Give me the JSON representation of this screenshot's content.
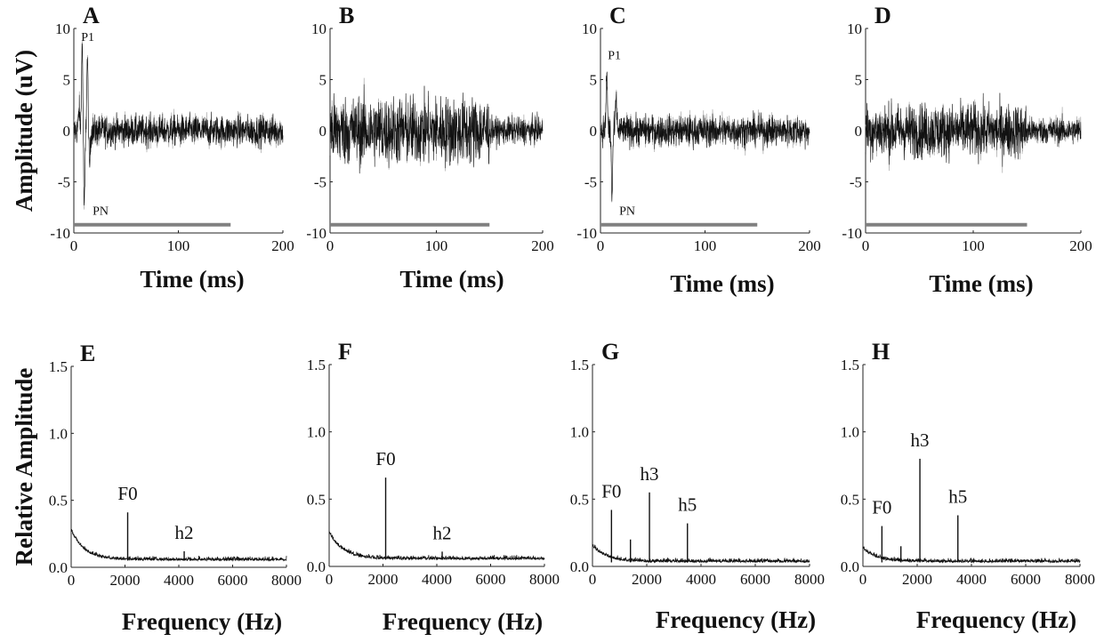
{
  "chart_data": [
    {
      "id": "A",
      "type": "line",
      "panel_label": "A",
      "xlabel": "Time (ms)",
      "ylabel": "Amplitude (uV)",
      "xlim": [
        0,
        200
      ],
      "ylim": [
        -10,
        10
      ],
      "xticks": [
        "0",
        "100",
        "200"
      ],
      "yticks": [
        "-10",
        "-5",
        "0",
        "5",
        "10"
      ],
      "stimulus_bar_ms": [
        0,
        150
      ],
      "annotations": [
        {
          "text": "P1",
          "x": 7,
          "y": 8.8
        },
        {
          "text": "PN",
          "x": 18,
          "y": -8.2
        }
      ],
      "waveform": {
        "onset_peaks": [
          [
            5,
            2
          ],
          [
            8,
            8.5
          ],
          [
            10,
            -7.5
          ],
          [
            13,
            7
          ],
          [
            15,
            -3.5
          ]
        ],
        "noise_amplitude": 1.4,
        "end_ms": 200
      }
    },
    {
      "id": "B",
      "type": "line",
      "panel_label": "B",
      "xlabel": "Time (ms)",
      "ylabel": "",
      "xlim": [
        0,
        200
      ],
      "ylim": [
        -10,
        10
      ],
      "xticks": [
        "0",
        "100",
        "200"
      ],
      "yticks": [
        "-10",
        "-5",
        "0",
        "5",
        "10"
      ],
      "stimulus_bar_ms": [
        0,
        150
      ],
      "annotations": [],
      "waveform": {
        "onset_peaks": [],
        "noise_amplitude": 3.2,
        "late_noise_amplitude": 1.2,
        "noise_change_ms": 150,
        "end_ms": 200
      }
    },
    {
      "id": "C",
      "type": "line",
      "panel_label": "C",
      "xlabel": "Time (ms)",
      "ylabel": "",
      "xlim": [
        0,
        200
      ],
      "ylim": [
        -10,
        10
      ],
      "xticks": [
        "0",
        "100",
        "200"
      ],
      "yticks": [
        "-10",
        "-5",
        "0",
        "5",
        "10"
      ],
      "stimulus_bar_ms": [
        0,
        150
      ],
      "annotations": [
        {
          "text": "P1",
          "x": 7,
          "y": 7
        },
        {
          "text": "PN",
          "x": 18,
          "y": -8.2
        }
      ],
      "waveform": {
        "onset_peaks": [
          [
            6,
            5.5
          ],
          [
            11,
            -6.5
          ],
          [
            15,
            3
          ]
        ],
        "noise_amplitude": 1.4,
        "end_ms": 200
      }
    },
    {
      "id": "D",
      "type": "line",
      "panel_label": "D",
      "xlabel": "Time (ms)",
      "ylabel": "",
      "xlim": [
        0,
        200
      ],
      "ylim": [
        -10,
        10
      ],
      "xticks": [
        "0",
        "100",
        "200"
      ],
      "yticks": [
        "-10",
        "-5",
        "0",
        "5",
        "10"
      ],
      "stimulus_bar_ms": [
        0,
        150
      ],
      "annotations": [],
      "waveform": {
        "onset_peaks": [],
        "noise_amplitude": 2.5,
        "late_noise_amplitude": 1.2,
        "noise_change_ms": 150,
        "end_ms": 200
      }
    },
    {
      "id": "E",
      "type": "line",
      "panel_label": "E",
      "xlabel": "Frequency (Hz)",
      "ylabel": "Relative Amplitude",
      "xlim": [
        0,
        8000
      ],
      "ylim": [
        0,
        1.5
      ],
      "xticks": [
        "0",
        "2000",
        "4000",
        "6000",
        "8000"
      ],
      "yticks": [
        "0.0",
        "0.5",
        "1.0",
        "1.5"
      ],
      "peaks": [
        {
          "label": "F0",
          "x": 2100,
          "y": 0.41
        },
        {
          "label": "h2",
          "x": 4200,
          "y": 0.12
        }
      ],
      "baseline": 0.05,
      "low_freq_max": 0.22
    },
    {
      "id": "F",
      "type": "line",
      "panel_label": "F",
      "xlabel": "Frequency (Hz)",
      "ylabel": "",
      "xlim": [
        0,
        8000
      ],
      "ylim": [
        0,
        1.5
      ],
      "xticks": [
        "0",
        "2000",
        "4000",
        "6000",
        "8000"
      ],
      "yticks": [
        "0.0",
        "0.5",
        "1.0",
        "1.5"
      ],
      "peaks": [
        {
          "label": "F0",
          "x": 2100,
          "y": 0.66
        },
        {
          "label": "h2",
          "x": 4200,
          "y": 0.11
        }
      ],
      "baseline": 0.05,
      "low_freq_max": 0.2
    },
    {
      "id": "G",
      "type": "line",
      "panel_label": "G",
      "xlabel": "Frequency (Hz)",
      "ylabel": "",
      "xlim": [
        0,
        8000
      ],
      "ylim": [
        0,
        1.5
      ],
      "xticks": [
        "0",
        "2000",
        "4000",
        "6000",
        "8000"
      ],
      "yticks": [
        "0.0",
        "0.5",
        "1.0",
        "1.5"
      ],
      "peaks": [
        {
          "label": "F0",
          "x": 700,
          "y": 0.42
        },
        {
          "label": "",
          "x": 1400,
          "y": 0.2
        },
        {
          "label": "h3",
          "x": 2100,
          "y": 0.55
        },
        {
          "label": "h5",
          "x": 3500,
          "y": 0.32
        }
      ],
      "baseline": 0.03,
      "low_freq_max": 0.12
    },
    {
      "id": "H",
      "type": "line",
      "panel_label": "H",
      "xlabel": "Frequency (Hz)",
      "ylabel": "",
      "xlim": [
        0,
        8000
      ],
      "ylim": [
        0,
        1.5
      ],
      "xticks": [
        "0",
        "2000",
        "4000",
        "6000",
        "8000"
      ],
      "yticks": [
        "0.0",
        "0.5",
        "1.0",
        "1.5"
      ],
      "peaks": [
        {
          "label": "F0",
          "x": 700,
          "y": 0.3
        },
        {
          "label": "",
          "x": 1400,
          "y": 0.15
        },
        {
          "label": "h3",
          "x": 2100,
          "y": 0.8
        },
        {
          "label": "h5",
          "x": 3500,
          "y": 0.38
        }
      ],
      "baseline": 0.03,
      "low_freq_max": 0.1
    }
  ],
  "colors": {
    "trace": "#111111",
    "trace_light": "#9a9a9a",
    "stimulus_bar": "#808080",
    "axis": "#222222"
  }
}
